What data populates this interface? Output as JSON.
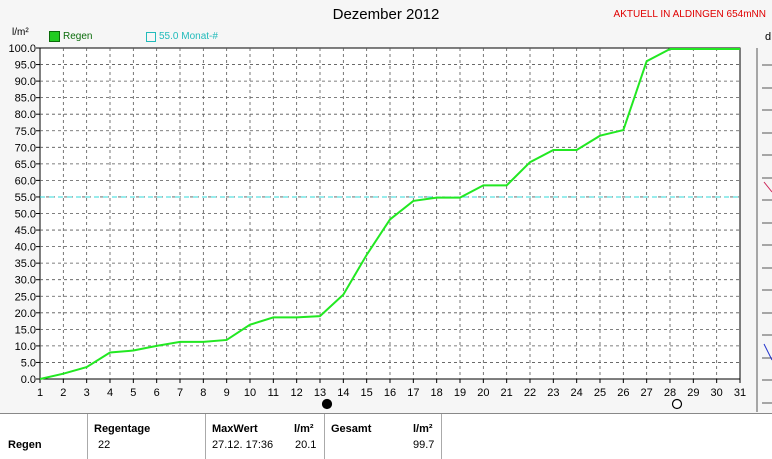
{
  "header": {
    "title": "Dezember 2012",
    "aktuell": "AKTUELL IN ALDINGEN 654mNN",
    "unit": "l/m²",
    "right_partial": "d"
  },
  "legend": {
    "regen_label": "Regen",
    "monat_label": "55.0 Monat-#"
  },
  "colors": {
    "regen_line": "#22e822",
    "monat_line": "#30d8d8",
    "grid": "#555555"
  },
  "chart_data": {
    "type": "line",
    "title": "Dezember 2012",
    "ylabel": "l/m²",
    "xlim": [
      1,
      31
    ],
    "ylim": [
      0,
      100
    ],
    "x_ticks": [
      1,
      2,
      3,
      4,
      5,
      6,
      7,
      8,
      9,
      10,
      11,
      12,
      13,
      14,
      15,
      16,
      17,
      18,
      19,
      20,
      21,
      22,
      23,
      24,
      25,
      26,
      27,
      28,
      29,
      30,
      31
    ],
    "y_ticks": [
      "0.0",
      "5.0",
      "10.0",
      "15.0",
      "20.0",
      "25.0",
      "30.0",
      "35.0",
      "40.0",
      "45.0",
      "50.0",
      "55.0",
      "60.0",
      "65.0",
      "70.0",
      "75.0",
      "80.0",
      "85.0",
      "90.0",
      "95.0",
      "100.0"
    ],
    "grid": true,
    "series": [
      {
        "name": "Regen",
        "x": [
          1,
          2,
          3,
          4,
          5,
          6,
          7,
          8,
          9,
          10,
          11,
          12,
          13,
          14,
          15,
          16,
          17,
          18,
          19,
          20,
          21,
          22,
          23,
          24,
          25,
          26,
          27,
          28,
          29,
          30,
          31
        ],
        "values": [
          0.0,
          1.6,
          3.6,
          8.0,
          8.6,
          10.0,
          11.2,
          11.2,
          11.8,
          16.4,
          18.6,
          18.6,
          19.0,
          25.5,
          37.5,
          48.2,
          53.8,
          54.8,
          54.8,
          58.5,
          58.5,
          65.5,
          69.2,
          69.2,
          73.5,
          75.2,
          96.0,
          99.7,
          99.7,
          99.7,
          99.7
        ]
      }
    ],
    "reference_line": {
      "name": "55.0 Monat-#",
      "value": 55.0
    },
    "markers": [
      {
        "day": 13,
        "symbol": "filled-circle"
      },
      {
        "day": 28,
        "symbol": "open-circle"
      }
    ]
  },
  "table": {
    "row_label": "Regen",
    "regentage_header": "Regentage",
    "regentage_value": "22",
    "maxwert_header": "MaxWert",
    "maxwert_unit": "l/m²",
    "maxwert_time": "27.12.  17:36",
    "maxwert_value": "20.1",
    "gesamt_header": "Gesamt",
    "gesamt_unit": "l/m²",
    "gesamt_value": "99.7"
  }
}
